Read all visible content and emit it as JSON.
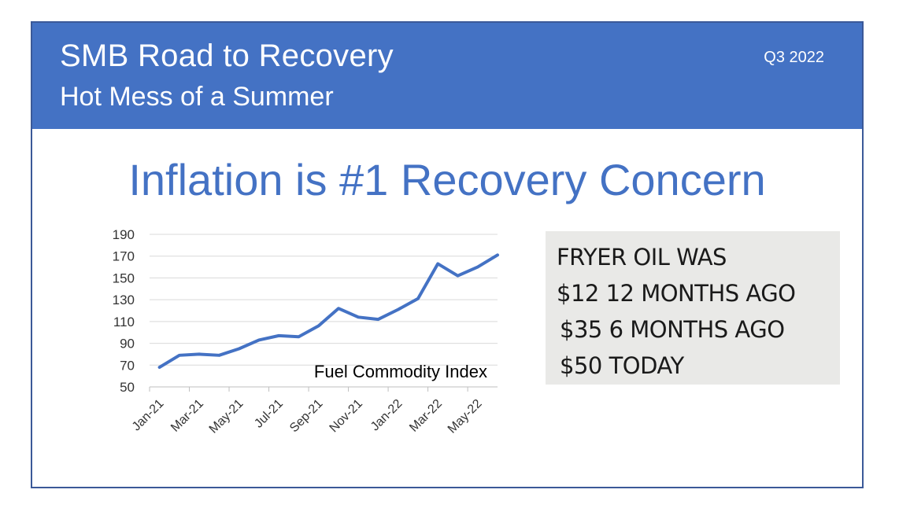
{
  "banner": {
    "title": "SMB Road to Recovery",
    "subtitle": "Hot Mess of a Summer",
    "period": "Q3 2022",
    "color": "#4472c4"
  },
  "headline": "Inflation is #1 Recovery Concern",
  "note": {
    "lines": [
      "FRYER OIL WAS",
      "$12  12 MONTHS AGO",
      "$35  6 MONTHS AGO",
      "$50  TODAY"
    ]
  },
  "chart_data": {
    "type": "line",
    "annotation": "Fuel Commodity Index",
    "x_categories": [
      "Jan-21",
      "Feb-21",
      "Mar-21",
      "Apr-21",
      "May-21",
      "Jun-21",
      "Jul-21",
      "Aug-21",
      "Sep-21",
      "Oct-21",
      "Nov-21",
      "Dec-21",
      "Jan-22",
      "Feb-22",
      "Mar-22",
      "Apr-22",
      "May-22",
      "Jun-22"
    ],
    "x_tick_labels": [
      "Jan-21",
      "Mar-21",
      "May-21",
      "Jul-21",
      "Sep-21",
      "Nov-21",
      "Jan-22",
      "Mar-22",
      "May-22"
    ],
    "series": [
      {
        "values": [
          68,
          79,
          80,
          79,
          85,
          93,
          97,
          96,
          106,
          122,
          114,
          112,
          121,
          131,
          163,
          152,
          160,
          171
        ],
        "color": "#4472c4"
      }
    ],
    "y_ticks": [
      50,
      70,
      90,
      110,
      130,
      150,
      170,
      190
    ],
    "ylim": [
      50,
      190
    ],
    "grid": true,
    "gridline_color": "#d9d9d9"
  }
}
